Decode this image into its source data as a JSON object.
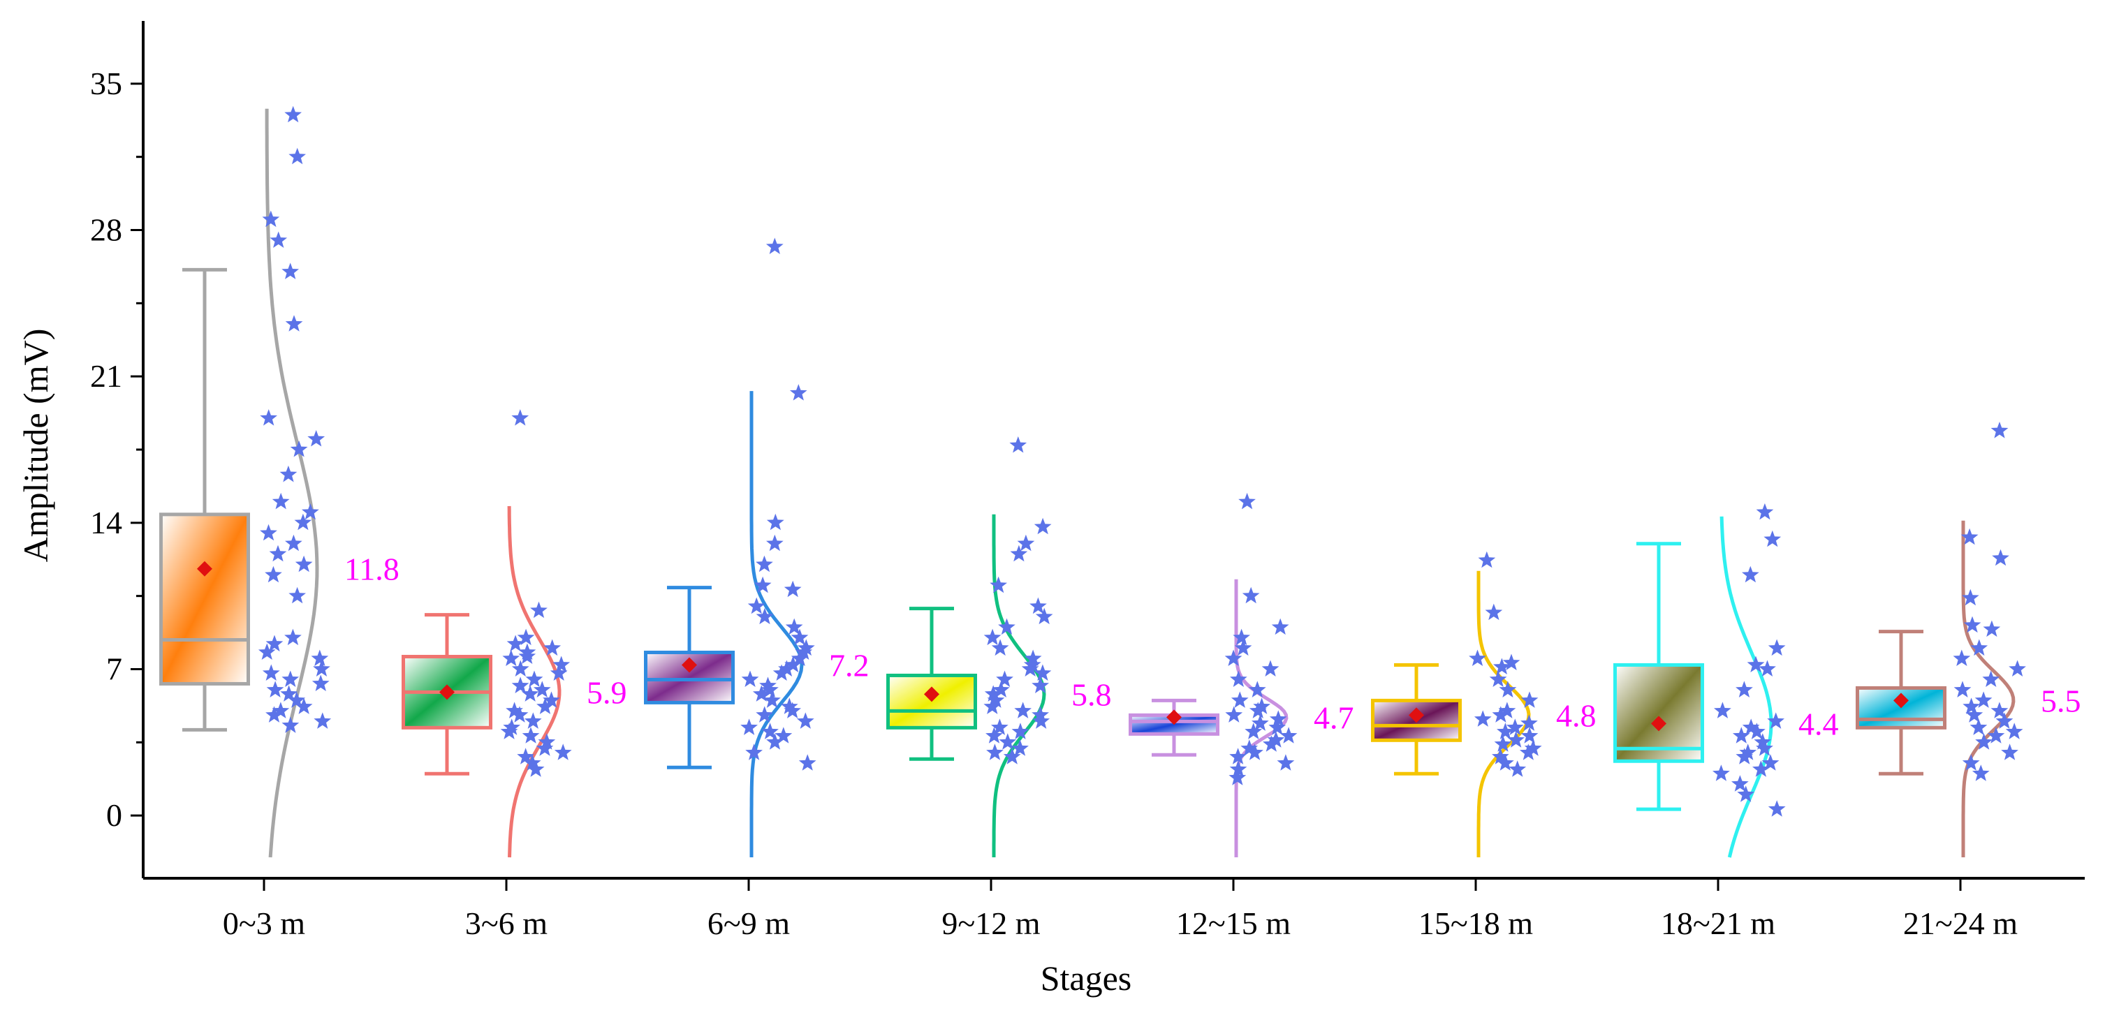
{
  "chart_data": {
    "type": "box",
    "xlabel": "Stages",
    "ylabel": "Amplitude (mV)",
    "ylim": [
      -3,
      38
    ],
    "yticks": [
      0,
      7,
      14,
      21,
      28,
      35
    ],
    "categories": [
      "0~3 m",
      "3~6 m",
      "6~9 m",
      "9~12 m",
      "12~15 m",
      "15~18 m",
      "18~21 m",
      "21~24 m"
    ],
    "label_color": "#ff00ff",
    "mean_marker_color": "#e01010",
    "point_color": "#5b73e8",
    "series": [
      {
        "name": "0~3 m",
        "color": "#a6a6a6",
        "fill": "#ff7f0e",
        "whisker_low": 4.1,
        "q1": 6.3,
        "median": 8.4,
        "q3": 14.4,
        "whisker_high": 26.1,
        "mean": 11.8,
        "mean_label": "11.8",
        "curve_range": [
          -2,
          33.8
        ],
        "points": [
          33.5,
          31.5,
          28.5,
          27.5,
          26.0,
          23.5,
          19.0,
          18.0,
          17.5,
          16.3,
          15.0,
          14.5,
          14.0,
          13.5,
          13.0,
          12.5,
          12.0,
          11.5,
          10.5,
          8.5,
          8.2,
          7.8,
          7.5,
          7.0,
          6.8,
          6.5,
          6.3,
          6.0,
          5.8,
          5.5,
          5.2,
          5.0,
          4.8,
          4.5,
          4.3
        ]
      },
      {
        "name": "3~6 m",
        "color": "#f07470",
        "fill": "#12a84a",
        "whisker_low": 2.0,
        "q1": 4.2,
        "median": 5.9,
        "q3": 7.6,
        "whisker_high": 9.6,
        "mean": 5.9,
        "mean_label": "5.9",
        "curve_range": [
          -2,
          14.8
        ],
        "points": [
          19.0,
          9.8,
          8.5,
          8.2,
          8.0,
          7.8,
          7.6,
          7.5,
          7.2,
          7.0,
          6.8,
          6.5,
          6.2,
          6.0,
          5.8,
          5.5,
          5.2,
          5.0,
          4.8,
          4.5,
          4.2,
          4.0,
          3.8,
          3.5,
          3.2,
          3.0,
          2.8,
          2.5,
          2.2
        ]
      },
      {
        "name": "6~9 m",
        "color": "#2f8be0",
        "fill": "#7d2c8c",
        "whisker_low": 2.3,
        "q1": 5.4,
        "median": 6.5,
        "q3": 7.8,
        "whisker_high": 10.9,
        "mean": 7.2,
        "mean_label": "7.2",
        "curve_range": [
          -2,
          20.3
        ],
        "points": [
          27.2,
          20.2,
          14.0,
          13.0,
          12.0,
          11.0,
          10.8,
          10.0,
          9.5,
          9.0,
          8.5,
          8.0,
          7.8,
          7.5,
          7.2,
          7.0,
          6.8,
          6.5,
          6.2,
          6.0,
          5.8,
          5.5,
          5.2,
          5.0,
          4.8,
          4.5,
          4.2,
          4.0,
          3.8,
          3.5,
          3.0,
          2.5
        ]
      },
      {
        "name": "9~12 m",
        "color": "#10c080",
        "fill": "#f0f000",
        "whisker_low": 2.7,
        "q1": 4.2,
        "median": 5.0,
        "q3": 6.7,
        "whisker_high": 9.9,
        "mean": 5.8,
        "mean_label": "5.8",
        "curve_range": [
          -2,
          14.4
        ],
        "points": [
          17.7,
          13.8,
          13.0,
          12.5,
          11.0,
          10.0,
          9.5,
          9.0,
          8.5,
          8.0,
          7.5,
          7.2,
          7.0,
          6.8,
          6.5,
          6.2,
          6.0,
          5.8,
          5.5,
          5.2,
          5.0,
          4.8,
          4.5,
          4.2,
          4.0,
          3.8,
          3.5,
          3.2,
          3.0,
          2.8
        ]
      },
      {
        "name": "12~15 m",
        "color": "#c890e0",
        "fill": "#1844d8",
        "whisker_low": 2.9,
        "q1": 3.9,
        "median": 4.5,
        "q3": 4.8,
        "whisker_high": 5.5,
        "mean": 4.7,
        "mean_label": "4.7",
        "curve_range": [
          -2,
          11.3
        ],
        "points": [
          15.0,
          10.5,
          9.0,
          8.5,
          8.0,
          7.5,
          7.0,
          6.5,
          6.0,
          5.5,
          5.2,
          5.0,
          4.8,
          4.6,
          4.4,
          4.2,
          4.0,
          3.8,
          3.6,
          3.4,
          3.2,
          3.0,
          2.8,
          2.5,
          2.2,
          1.8
        ]
      },
      {
        "name": "15~18 m",
        "color": "#f4c400",
        "fill": "#6a1558",
        "whisker_low": 2.0,
        "q1": 3.6,
        "median": 4.3,
        "q3": 5.5,
        "whisker_high": 7.2,
        "mean": 4.8,
        "mean_label": "4.8",
        "curve_range": [
          -2,
          11.7
        ],
        "points": [
          12.2,
          9.7,
          7.5,
          7.3,
          7.1,
          6.5,
          6.0,
          5.5,
          5.0,
          4.8,
          4.6,
          4.4,
          4.2,
          4.0,
          3.8,
          3.6,
          3.4,
          3.2,
          3.0,
          2.8,
          2.5,
          2.2
        ]
      },
      {
        "name": "18~21 m",
        "color": "#2ef0f0",
        "fill": "#7a7a30",
        "whisker_low": 0.3,
        "q1": 2.6,
        "median": 3.2,
        "q3": 7.2,
        "whisker_high": 13.0,
        "mean": 4.4,
        "mean_label": "4.4",
        "curve_range": [
          -2,
          14.3
        ],
        "points": [
          14.5,
          13.2,
          11.5,
          8.0,
          7.2,
          7.0,
          6.0,
          5.0,
          4.5,
          4.2,
          4.0,
          3.8,
          3.5,
          3.2,
          3.0,
          2.8,
          2.5,
          2.2,
          2.0,
          1.5,
          1.0,
          0.3
        ]
      },
      {
        "name": "21~24 m",
        "color": "#c08078",
        "fill": "#00b4d8",
        "whisker_low": 2.0,
        "q1": 4.2,
        "median": 4.6,
        "q3": 6.1,
        "whisker_high": 8.8,
        "mean": 5.5,
        "mean_label": "5.5",
        "curve_range": [
          -2,
          14.1
        ],
        "points": [
          18.4,
          13.3,
          12.3,
          10.4,
          9.1,
          8.9,
          8.0,
          7.5,
          7.0,
          6.5,
          6.0,
          5.5,
          5.2,
          5.0,
          4.8,
          4.5,
          4.2,
          4.0,
          3.8,
          3.5,
          3.0,
          2.5,
          2.0
        ]
      }
    ]
  }
}
